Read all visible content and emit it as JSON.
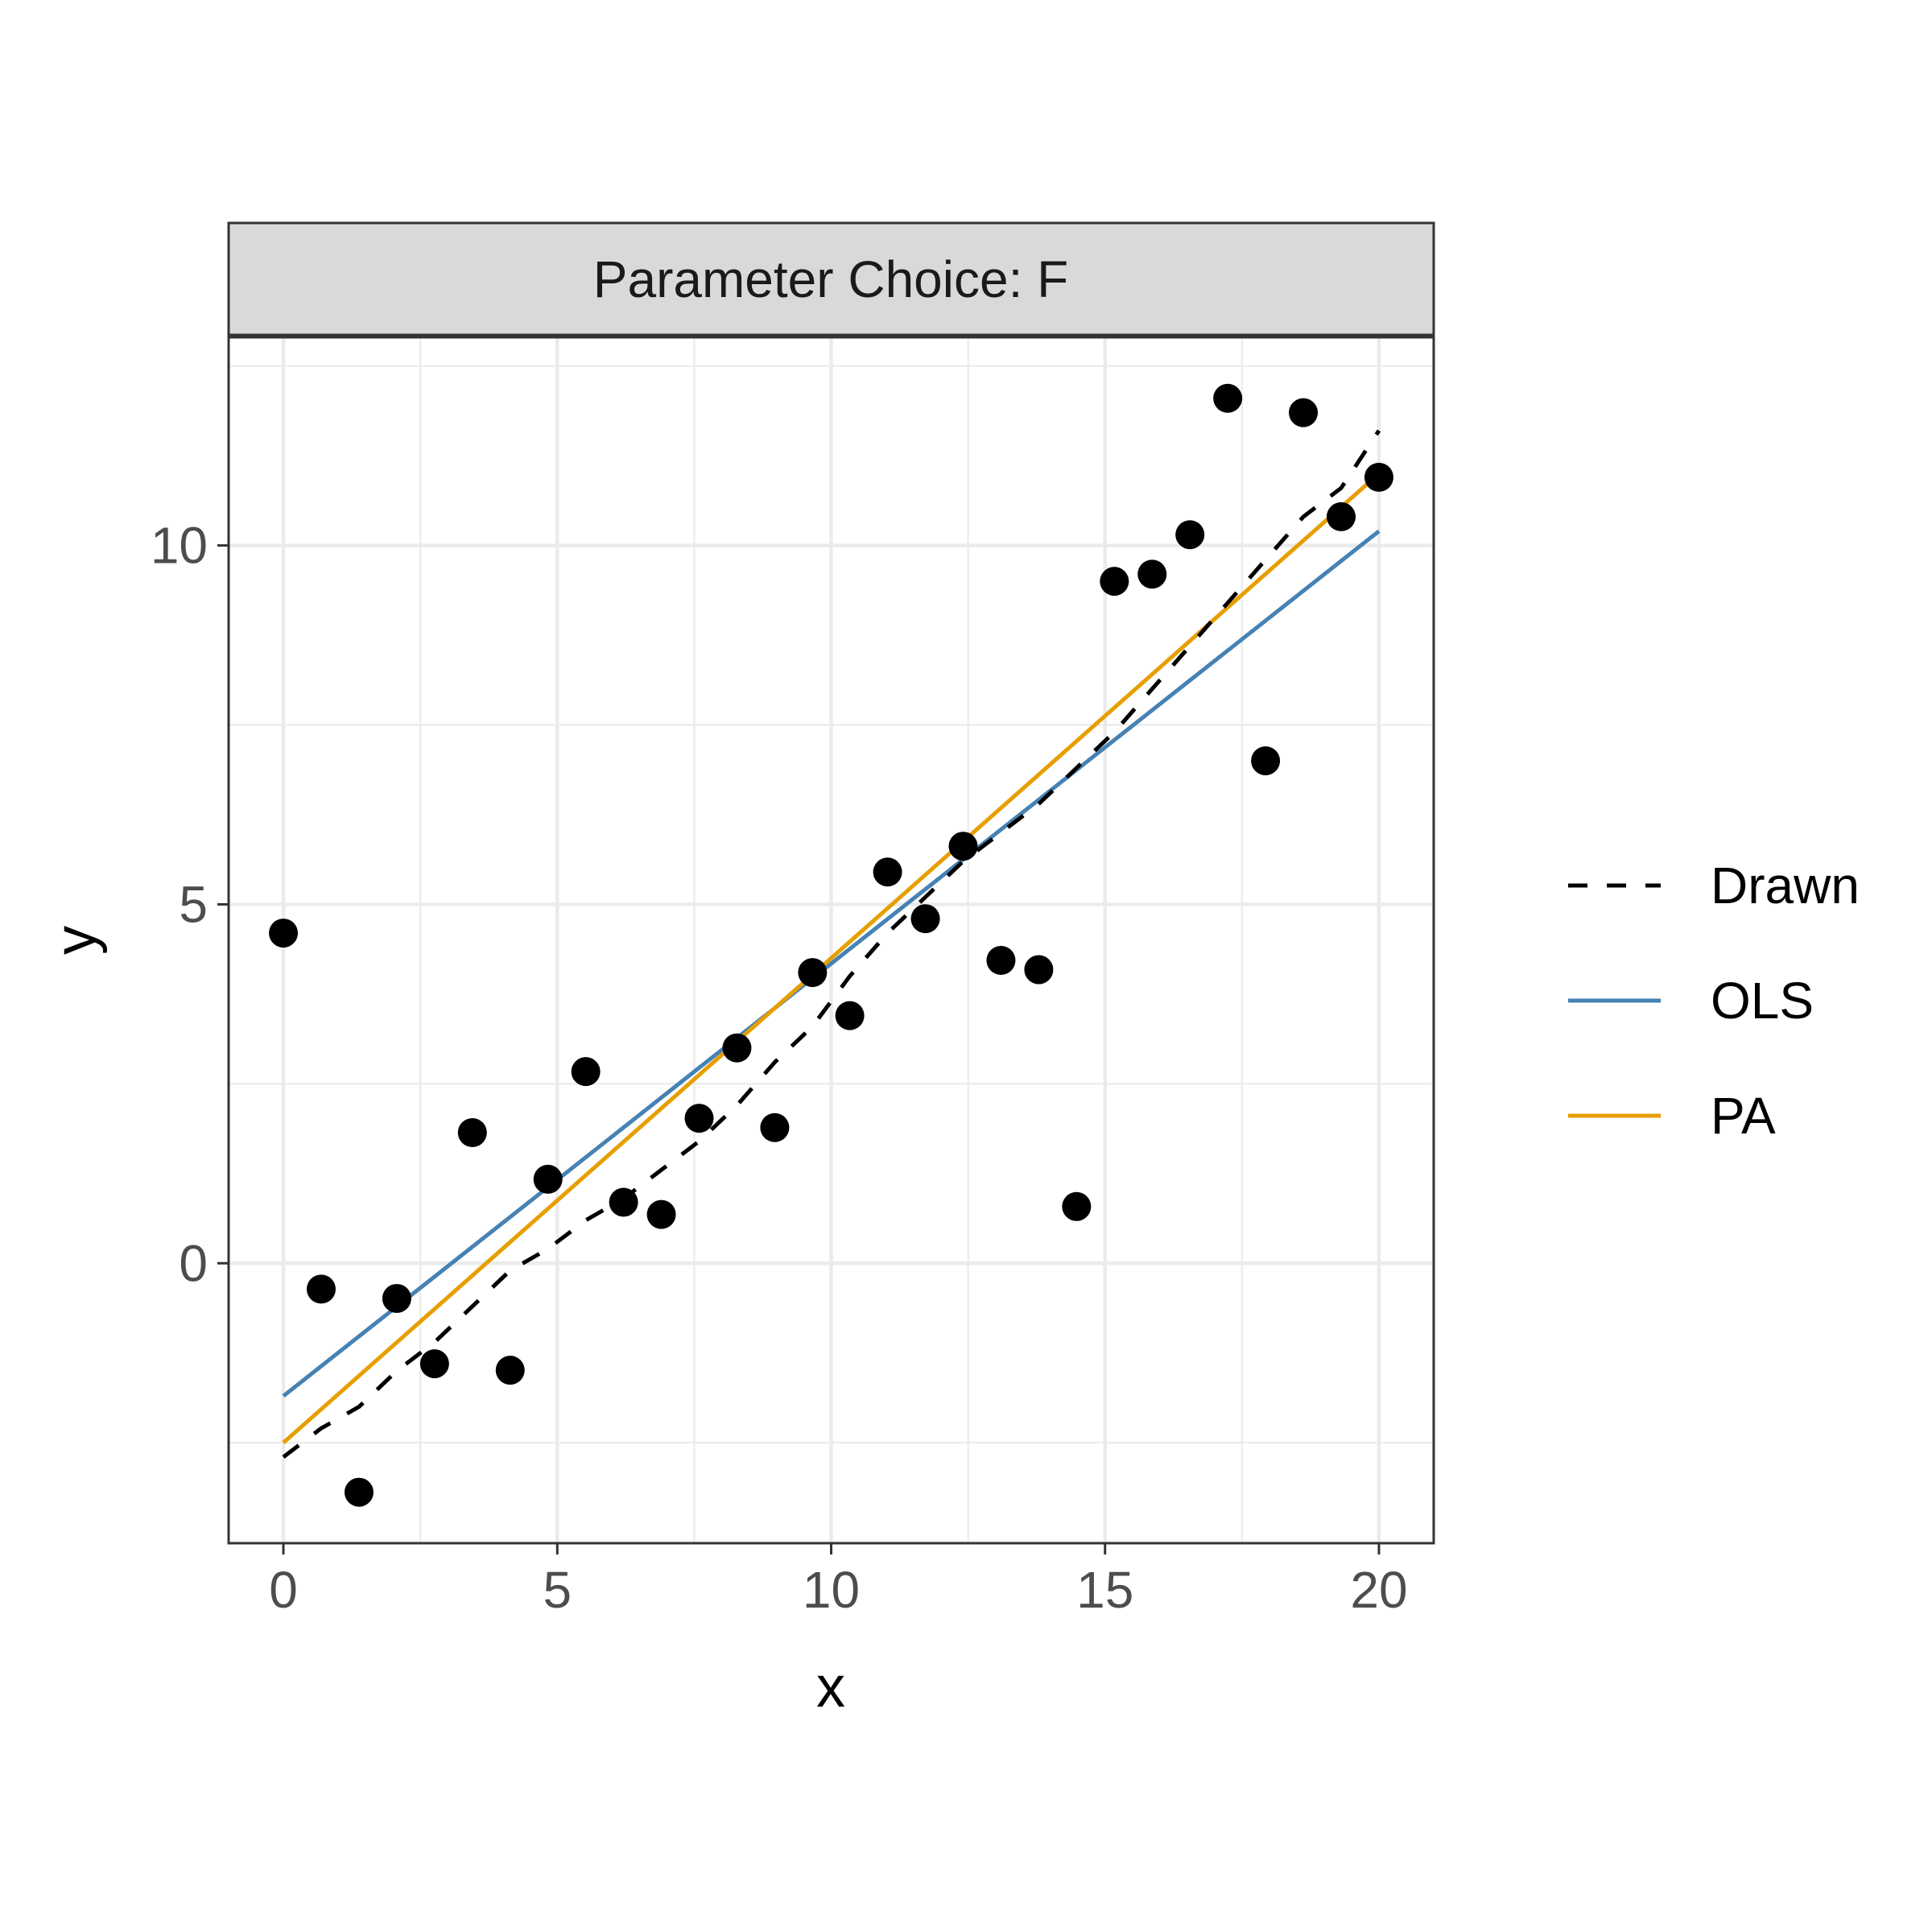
{
  "chart_data": {
    "type": "scatter",
    "facet_title": "Parameter Choice: F",
    "xlabel": "x",
    "ylabel": "y",
    "xlim": [
      -1,
      21
    ],
    "ylim": [
      -3.9,
      12.9
    ],
    "x_ticks": [
      0,
      5,
      10,
      15,
      20
    ],
    "x_tick_labels": [
      "0",
      "5",
      "10",
      "15",
      "20"
    ],
    "y_ticks": [
      0,
      5,
      10
    ],
    "y_tick_labels": [
      "0",
      "5",
      "10"
    ],
    "x_minor": [
      2.5,
      7.5,
      12.5,
      17.5
    ],
    "y_minor": [
      -2.5,
      2.5,
      7.5,
      12.5
    ],
    "grid": true,
    "legend_position": "right",
    "points": {
      "x": [
        0,
        0.69,
        1.38,
        2.07,
        2.76,
        3.45,
        4.14,
        4.83,
        5.52,
        6.21,
        6.9,
        7.59,
        8.28,
        8.97,
        9.66,
        10.34,
        11.03,
        11.72,
        12.41,
        13.1,
        13.79,
        14.48,
        15.17,
        15.86,
        16.55,
        17.24,
        17.93,
        18.62,
        19.31,
        20.0
      ],
      "y": [
        4.6,
        -0.36,
        -3.19,
        -0.49,
        -1.4,
        1.82,
        -1.49,
        1.17,
        2.67,
        0.85,
        0.68,
        2.02,
        3.0,
        1.89,
        4.05,
        3.45,
        5.45,
        4.8,
        5.81,
        4.22,
        4.09,
        0.79,
        9.5,
        9.6,
        10.15,
        12.05,
        7.0,
        11.85,
        10.4,
        10.95
      ]
    },
    "series": [
      {
        "name": "Drawn",
        "style": "dashed",
        "color": "#000000",
        "x": [
          0,
          0.69,
          1.38,
          2.07,
          2.76,
          3.45,
          4.14,
          4.83,
          5.52,
          6.21,
          6.9,
          7.59,
          8.28,
          8.97,
          9.66,
          10.34,
          11.03,
          11.72,
          12.41,
          13.1,
          13.79,
          14.48,
          15.17,
          15.86,
          16.55,
          17.24,
          17.93,
          18.62,
          19.31,
          20.0
        ],
        "y": [
          -2.7,
          -2.3,
          -2.0,
          -1.5,
          -1.1,
          -0.6,
          -0.1,
          0.2,
          0.6,
          0.9,
          1.3,
          1.7,
          2.2,
          2.8,
          3.3,
          4.0,
          4.6,
          5.1,
          5.6,
          6.0,
          6.4,
          6.9,
          7.4,
          8.0,
          8.6,
          9.2,
          9.8,
          10.4,
          10.8,
          11.6
        ]
      },
      {
        "name": "OLS",
        "style": "solid",
        "color": "#4682b4",
        "x": [
          0,
          20
        ],
        "y": [
          -1.85,
          10.2
        ]
      },
      {
        "name": "PA",
        "style": "solid",
        "color": "#e69f00",
        "x": [
          0,
          20
        ],
        "y": [
          -2.5,
          11.0
        ]
      }
    ],
    "legend": [
      "Drawn",
      "OLS",
      "PA"
    ],
    "point_color": "#000000",
    "panel_border_color": "#333333",
    "strip_fill": "#d9d9d9"
  }
}
